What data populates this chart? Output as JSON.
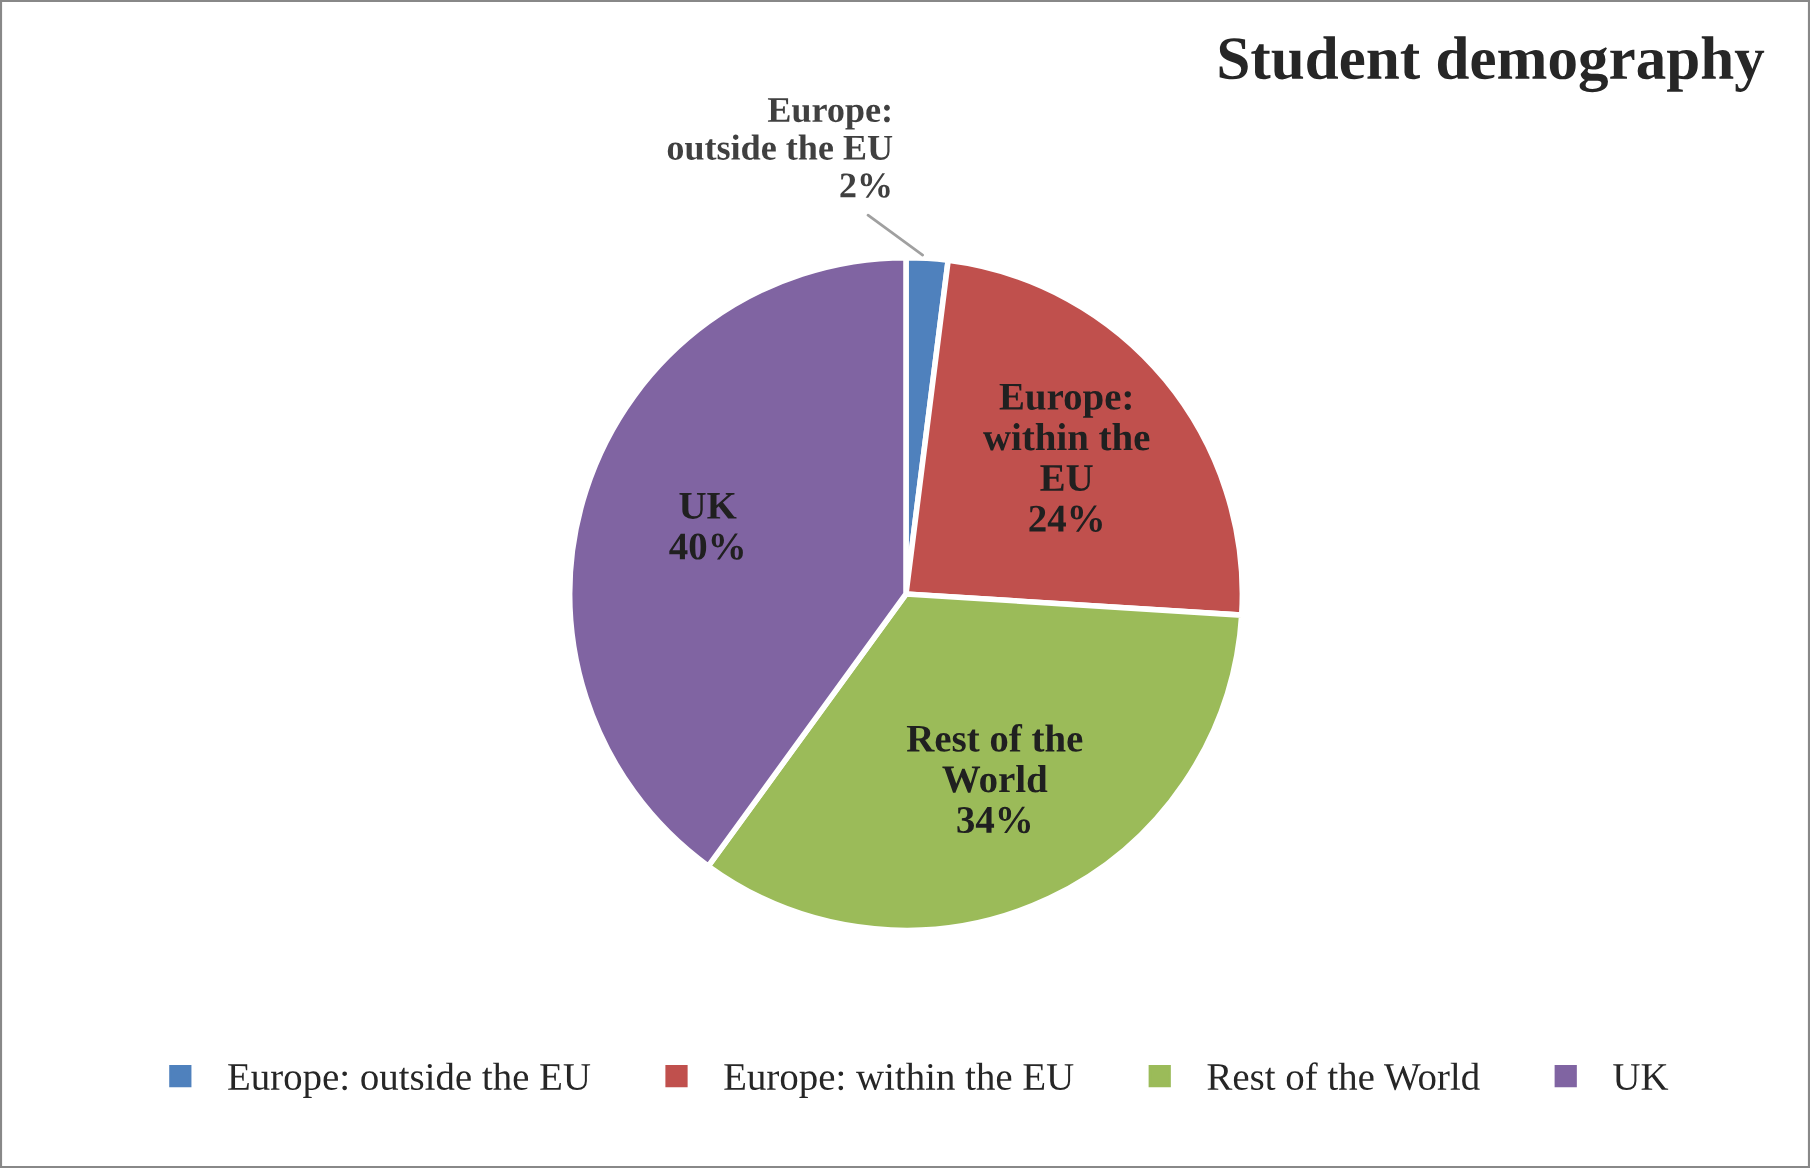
{
  "chart_data": {
    "type": "pie",
    "title": "Student demography",
    "categories": [
      "Europe: outside the EU",
      "Europe: within the EU",
      "Rest of the World",
      "UK"
    ],
    "values": [
      2,
      24,
      34,
      40
    ],
    "colors": [
      "#4f81bd",
      "#c0504d",
      "#9bbb59",
      "#8064a2"
    ],
    "value_labels": [
      "2%",
      "24%",
      "34%",
      "40%"
    ],
    "legend": "bottom"
  }
}
